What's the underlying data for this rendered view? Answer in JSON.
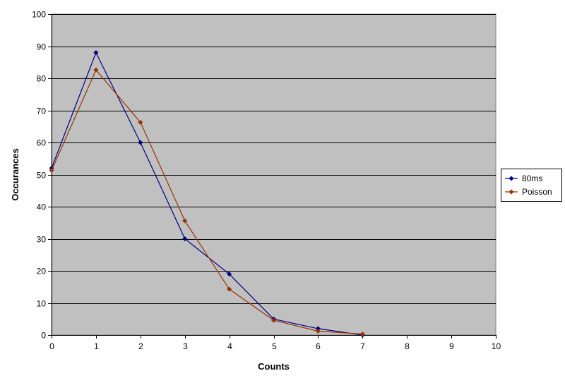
{
  "chart_data": {
    "type": "line",
    "title": "",
    "xlabel": "Counts",
    "ylabel": "Occurances",
    "xlim": [
      0,
      10
    ],
    "ylim": [
      0,
      100
    ],
    "x_ticks": [
      0,
      1,
      2,
      3,
      4,
      5,
      6,
      7,
      8,
      9,
      10
    ],
    "y_ticks": [
      0,
      10,
      20,
      30,
      40,
      50,
      60,
      70,
      80,
      90,
      100
    ],
    "grid": "horizontal",
    "legend_position": "right",
    "series": [
      {
        "name": "80ms",
        "color": "#000080",
        "marker": "diamond",
        "x": [
          0,
          1,
          2,
          3,
          4,
          5,
          6,
          7
        ],
        "y": [
          52,
          88,
          60,
          30,
          19,
          5,
          2,
          0
        ]
      },
      {
        "name": "Poisson",
        "color": "#993300",
        "marker": "diamond",
        "x": [
          0,
          1,
          2,
          3,
          4,
          5,
          6,
          7
        ],
        "y": [
          51.3,
          82.6,
          66.3,
          35.6,
          14.3,
          4.6,
          1.2,
          0.3
        ]
      }
    ]
  },
  "style": {
    "plot_background": "#c0c0c0",
    "gridline_color": "#000000",
    "page_background": "#ffffff"
  }
}
